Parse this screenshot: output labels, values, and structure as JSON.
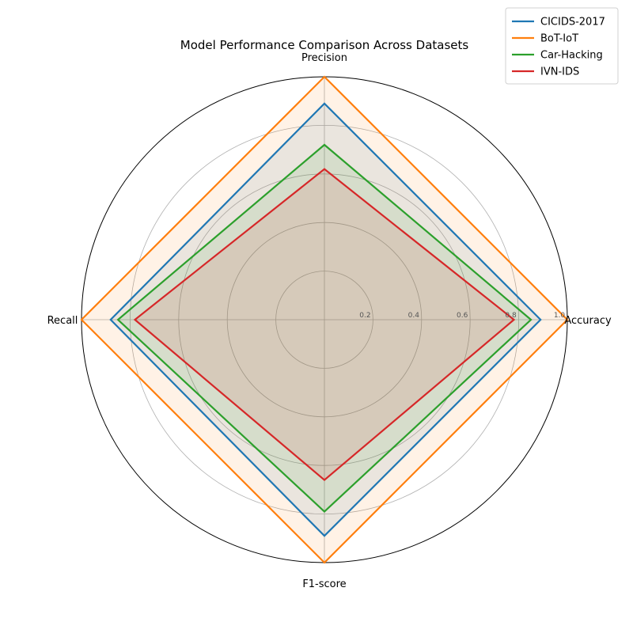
{
  "chart_data": {
    "type": "radar",
    "title": "Model Performance Comparison Across Datasets",
    "axes": [
      "Accuracy",
      "Precision",
      "Recall",
      "F1-score"
    ],
    "rlim": [
      0,
      1.0
    ],
    "rticks": [
      "0.2",
      "0.4",
      "0.6",
      "0.8",
      "1.0"
    ],
    "rtick_values": [
      0.2,
      0.4,
      0.6,
      0.8,
      1.0
    ],
    "grid": true,
    "legend_position": "top-right",
    "series": [
      {
        "name": "CICIDS-2017",
        "color": "#1f77b4",
        "values": [
          0.89,
          0.89,
          0.88,
          0.89
        ]
      },
      {
        "name": "BoT-IoT",
        "color": "#ff7f0e",
        "values": [
          1.0,
          1.0,
          1.0,
          1.0
        ]
      },
      {
        "name": "Car-Hacking",
        "color": "#2ca02c",
        "values": [
          0.85,
          0.72,
          0.85,
          0.79
        ]
      },
      {
        "name": "IVN-IDS",
        "color": "#d62728",
        "values": [
          0.78,
          0.62,
          0.78,
          0.66
        ]
      }
    ]
  }
}
